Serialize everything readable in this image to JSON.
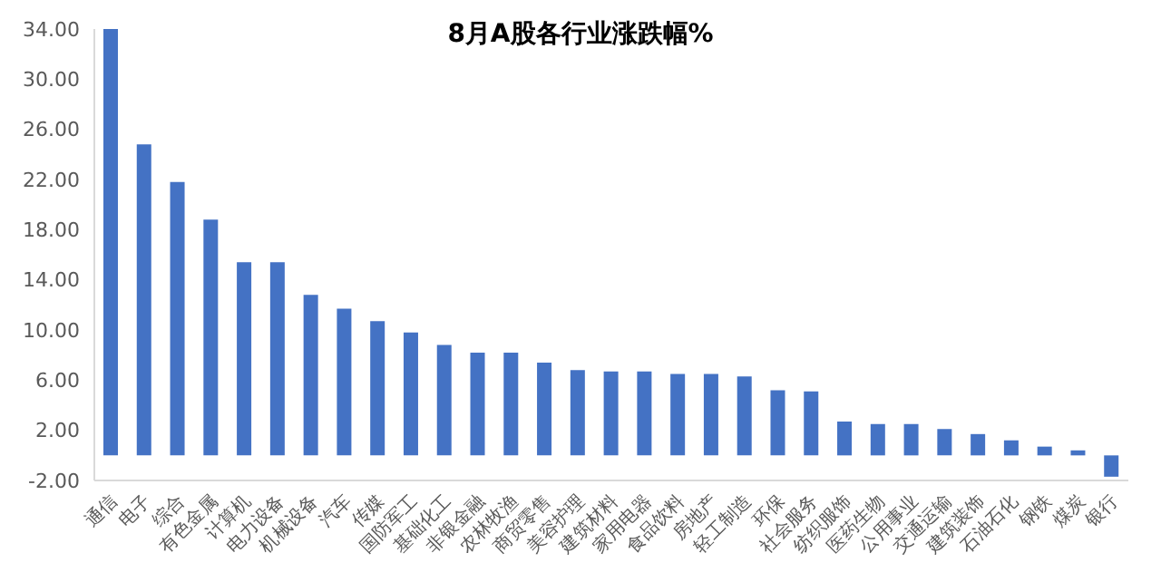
{
  "chart_data": {
    "type": "bar",
    "title": "8月A股各行业涨跌幅%",
    "categories": [
      "通信",
      "电子",
      "综合",
      "有色金属",
      "计算机",
      "电力设备",
      "机械设备",
      "汽车",
      "传媒",
      "国防军工",
      "基础化工",
      "非银金融",
      "农林牧渔",
      "商贸零售",
      "美容护理",
      "建筑材料",
      "家用电器",
      "食品饮料",
      "房地产",
      "轻工制造",
      "环保",
      "社会服务",
      "纺织服饰",
      "医药生物",
      "公用事业",
      "交通运输",
      "建筑装饰",
      "石油石化",
      "钢铁",
      "煤炭",
      "银行"
    ],
    "values": [
      34,
      24.8,
      21.8,
      18.8,
      15.4,
      15.4,
      12.8,
      11.7,
      10.7,
      9.8,
      8.8,
      8.2,
      8.2,
      7.4,
      6.8,
      6.7,
      6.7,
      6.5,
      6.5,
      6.3,
      5.2,
      5.1,
      2.7,
      2.5,
      2.5,
      2.1,
      1.7,
      1.2,
      0.7,
      0.4,
      -1.7
    ],
    "color": "#4472c4",
    "ylim": [
      -2,
      34
    ],
    "yticks": [
      {
        "value": -2,
        "label": "-2.00"
      },
      {
        "value": 2,
        "label": "2.00"
      },
      {
        "value": 6,
        "label": "6.00"
      },
      {
        "value": 10,
        "label": "10.00"
      },
      {
        "value": 14,
        "label": "14.00"
      },
      {
        "value": 18,
        "label": "18.00"
      },
      {
        "value": 22,
        "label": "22.00"
      },
      {
        "value": 26,
        "label": "26.00"
      },
      {
        "value": 30,
        "label": "30.00"
      },
      {
        "value": 34,
        "label": "34.00"
      }
    ],
    "grid": false,
    "legend": false
  }
}
